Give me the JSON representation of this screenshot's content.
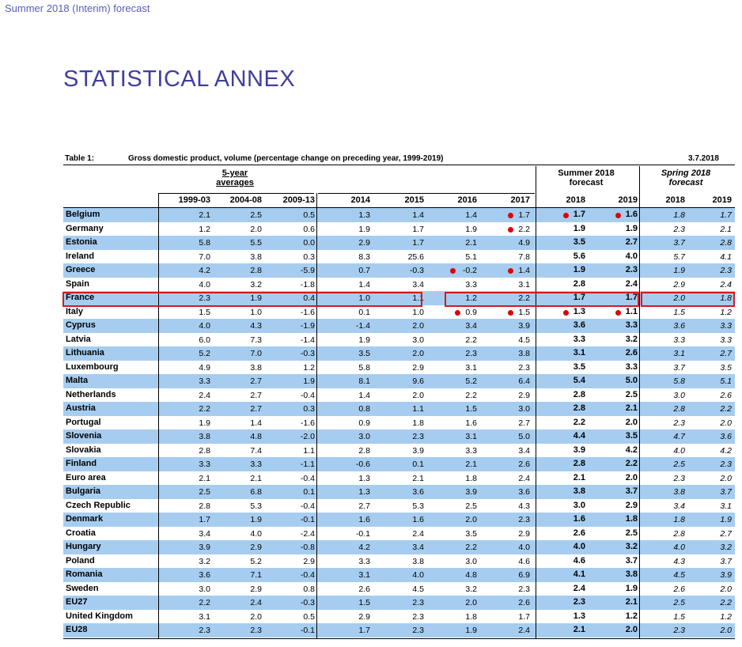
{
  "header": "Summer 2018 (Interim) forecast",
  "title": "STATISTICAL ANNEX",
  "table": {
    "label": "Table 1:",
    "caption": "Gross domestic product, volume (percentage change on preceding year, 1999-2019)",
    "date": "3.7.2018",
    "group_avg_1": "5-year",
    "group_avg_2": "averages",
    "group_summer_1": "Summer 2018",
    "group_summer_2": "forecast",
    "group_spring_1": "Spring 2018",
    "group_spring_2": "forecast",
    "columns": [
      "1999-03",
      "2004-08",
      "2009-13",
      "2014",
      "2015",
      "2016",
      "2017",
      "2018",
      "2019",
      "2018",
      "2019"
    ],
    "rows": [
      {
        "country": "Belgium",
        "values": [
          "2.1",
          "2.5",
          "0.5",
          "1.3",
          "1.4",
          "1.4",
          "1.7",
          "1.7",
          "1.6",
          "1.8",
          "1.7"
        ],
        "dots": [
          6,
          7,
          8
        ]
      },
      {
        "country": "Germany",
        "values": [
          "1.2",
          "2.0",
          "0.6",
          "1.9",
          "1.7",
          "1.9",
          "2.2",
          "1.9",
          "1.9",
          "2.3",
          "2.1"
        ],
        "dots": [
          6
        ]
      },
      {
        "country": "Estonia",
        "values": [
          "5.8",
          "5.5",
          "0.0",
          "2.9",
          "1.7",
          "2.1",
          "4.9",
          "3.5",
          "2.7",
          "3.7",
          "2.8"
        ],
        "dots": []
      },
      {
        "country": "Ireland",
        "values": [
          "7.0",
          "3.8",
          "0.3",
          "8.3",
          "25.6",
          "5.1",
          "7.8",
          "5.6",
          "4.0",
          "5.7",
          "4.1"
        ],
        "dots": []
      },
      {
        "country": "Greece",
        "values": [
          "4.2",
          "2.8",
          "-5.9",
          "0.7",
          "-0.3",
          "-0.2",
          "1.4",
          "1.9",
          "2.3",
          "1.9",
          "2.3"
        ],
        "dots": [
          5,
          6
        ]
      },
      {
        "country": "Spain",
        "values": [
          "4.0",
          "3.2",
          "-1.8",
          "1.4",
          "3.4",
          "3.3",
          "3.1",
          "2.8",
          "2.4",
          "2.9",
          "2.4"
        ],
        "dots": []
      },
      {
        "country": "France",
        "values": [
          "2.3",
          "1.9",
          "0.4",
          "1.0",
          "1.1",
          "1.2",
          "2.2",
          "1.7",
          "1.7",
          "2.0",
          "1.8"
        ],
        "dots": []
      },
      {
        "country": "Italy",
        "values": [
          "1.5",
          "1.0",
          "-1.6",
          "0.1",
          "1.0",
          "0.9",
          "1.5",
          "1.3",
          "1.1",
          "1.5",
          "1.2"
        ],
        "dots": [
          5,
          6,
          7,
          8
        ]
      },
      {
        "country": "Cyprus",
        "values": [
          "4.0",
          "4.3",
          "-1.9",
          "-1.4",
          "2.0",
          "3.4",
          "3.9",
          "3.6",
          "3.3",
          "3.6",
          "3.3"
        ],
        "dots": []
      },
      {
        "country": "Latvia",
        "values": [
          "6.0",
          "7.3",
          "-1.4",
          "1.9",
          "3.0",
          "2.2",
          "4.5",
          "3.3",
          "3.2",
          "3.3",
          "3.3"
        ],
        "dots": []
      },
      {
        "country": "Lithuania",
        "values": [
          "5.2",
          "7.0",
          "-0.3",
          "3.5",
          "2.0",
          "2.3",
          "3.8",
          "3.1",
          "2.6",
          "3.1",
          "2.7"
        ],
        "dots": []
      },
      {
        "country": "Luxembourg",
        "values": [
          "4.9",
          "3.8",
          "1.2",
          "5.8",
          "2.9",
          "3.1",
          "2.3",
          "3.5",
          "3.3",
          "3.7",
          "3.5"
        ],
        "dots": []
      },
      {
        "country": "Malta",
        "values": [
          "3.3",
          "2.7",
          "1.9",
          "8.1",
          "9.6",
          "5.2",
          "6.4",
          "5.4",
          "5.0",
          "5.8",
          "5.1"
        ],
        "dots": []
      },
      {
        "country": "Netherlands",
        "values": [
          "2.4",
          "2.7",
          "-0.4",
          "1.4",
          "2.0",
          "2.2",
          "2.9",
          "2.8",
          "2.5",
          "3.0",
          "2.6"
        ],
        "dots": []
      },
      {
        "country": "Austria",
        "values": [
          "2.2",
          "2.7",
          "0.3",
          "0.8",
          "1.1",
          "1.5",
          "3.0",
          "2.8",
          "2.1",
          "2.8",
          "2.2"
        ],
        "dots": []
      },
      {
        "country": "Portugal",
        "values": [
          "1.9",
          "1.4",
          "-1.6",
          "0.9",
          "1.8",
          "1.6",
          "2.7",
          "2.2",
          "2.0",
          "2.3",
          "2.0"
        ],
        "dots": []
      },
      {
        "country": "Slovenia",
        "values": [
          "3.8",
          "4.8",
          "-2.0",
          "3.0",
          "2.3",
          "3.1",
          "5.0",
          "4.4",
          "3.5",
          "4.7",
          "3.6"
        ],
        "dots": []
      },
      {
        "country": "Slovakia",
        "values": [
          "2.8",
          "7.4",
          "1.1",
          "2.8",
          "3.9",
          "3.3",
          "3.4",
          "3.9",
          "4.2",
          "4.0",
          "4.2"
        ],
        "dots": []
      },
      {
        "country": "Finland",
        "values": [
          "3.3",
          "3.3",
          "-1.1",
          "-0.6",
          "0.1",
          "2.1",
          "2.6",
          "2.8",
          "2.2",
          "2.5",
          "2.3"
        ],
        "dots": []
      },
      {
        "country": "Euro area",
        "values": [
          "2.1",
          "2.1",
          "-0.4",
          "1.3",
          "2.1",
          "1.8",
          "2.4",
          "2.1",
          "2.0",
          "2.3",
          "2.0"
        ],
        "dots": []
      },
      {
        "country": "Bulgaria",
        "values": [
          "2.5",
          "6.8",
          "0.1",
          "1.3",
          "3.6",
          "3.9",
          "3.6",
          "3.8",
          "3.7",
          "3.8",
          "3.7"
        ],
        "dots": []
      },
      {
        "country": "Czech Republic",
        "values": [
          "2.8",
          "5.3",
          "-0.4",
          "2.7",
          "5.3",
          "2.5",
          "4.3",
          "3.0",
          "2.9",
          "3.4",
          "3.1"
        ],
        "dots": []
      },
      {
        "country": "Denmark",
        "values": [
          "1.7",
          "1.9",
          "-0.1",
          "1.6",
          "1.6",
          "2.0",
          "2.3",
          "1.6",
          "1.8",
          "1.8",
          "1.9"
        ],
        "dots": []
      },
      {
        "country": "Croatia",
        "values": [
          "3.4",
          "4.0",
          "-2.4",
          "-0.1",
          "2.4",
          "3.5",
          "2.9",
          "2.6",
          "2.5",
          "2.8",
          "2.7"
        ],
        "dots": []
      },
      {
        "country": "Hungary",
        "values": [
          "3.9",
          "2.9",
          "-0.8",
          "4.2",
          "3.4",
          "2.2",
          "4.0",
          "4.0",
          "3.2",
          "4.0",
          "3.2"
        ],
        "dots": []
      },
      {
        "country": "Poland",
        "values": [
          "3.2",
          "5.2",
          "2.9",
          "3.3",
          "3.8",
          "3.0",
          "4.6",
          "4.6",
          "3.7",
          "4.3",
          "3.7"
        ],
        "dots": []
      },
      {
        "country": "Romania",
        "values": [
          "3.6",
          "7.1",
          "-0.4",
          "3.1",
          "4.0",
          "4.8",
          "6.9",
          "4.1",
          "3.8",
          "4.5",
          "3.9"
        ],
        "dots": []
      },
      {
        "country": "Sweden",
        "values": [
          "3.0",
          "2.9",
          "0.8",
          "2.6",
          "4.5",
          "3.2",
          "2.3",
          "2.4",
          "1.9",
          "2.6",
          "2.0"
        ],
        "dots": []
      },
      {
        "country": "EU27",
        "values": [
          "2.2",
          "2.4",
          "-0.3",
          "1.5",
          "2.3",
          "2.0",
          "2.6",
          "2.3",
          "2.1",
          "2.5",
          "2.2"
        ],
        "dots": []
      },
      {
        "country": "United Kingdom",
        "values": [
          "3.1",
          "2.0",
          "0.5",
          "2.9",
          "2.3",
          "1.8",
          "1.7",
          "1.3",
          "1.2",
          "1.5",
          "1.2"
        ],
        "dots": []
      },
      {
        "country": "EU28",
        "values": [
          "2.3",
          "2.3",
          "-0.1",
          "1.7",
          "2.3",
          "1.9",
          "2.4",
          "2.1",
          "2.0",
          "2.3",
          "2.0"
        ],
        "dots": []
      }
    ]
  },
  "colors": {
    "highlight_row": "#a6cdf0",
    "title": "#3f3f9f",
    "annotation_red": "#d31a1a"
  }
}
